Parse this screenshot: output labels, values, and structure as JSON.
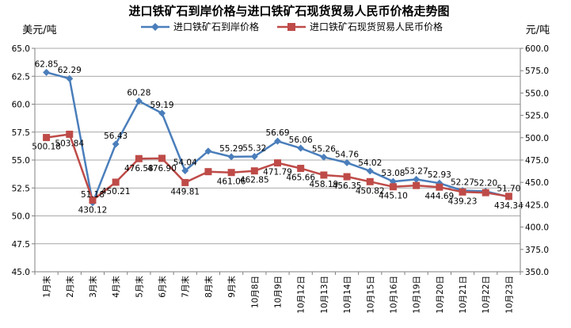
{
  "chart_data": {
    "type": "line",
    "title": "进口铁矿石到岸价格与进口铁矿石现货贸易人民币价格走势图",
    "y_left_unit": "美元/吨",
    "y_right_unit": "元/吨",
    "y_left_range": [
      45.0,
      65.0
    ],
    "y_left_ticks": [
      "45.0",
      "47.5",
      "50.0",
      "52.5",
      "55.0",
      "57.5",
      "60.0",
      "62.5",
      "65.0"
    ],
    "y_right_range": [
      350.0,
      600.0
    ],
    "y_right_ticks": [
      "350.0",
      "375.0",
      "400.0",
      "425.0",
      "450.0",
      "475.0",
      "500.0",
      "525.0",
      "550.0",
      "575.0",
      "600.0"
    ],
    "grid": true,
    "legend_position": "top-center",
    "categories": [
      "1月末",
      "2月末",
      "3月末",
      "4月末",
      "5月末",
      "6月末",
      "7月末",
      "8月末",
      "9月末",
      "10月8日",
      "10月9日",
      "10月12日",
      "10月13日",
      "10月14日",
      "10月15日",
      "10月16日",
      "10月19日",
      "10月20日",
      "10月21日",
      "10月22日",
      "10月23日"
    ],
    "series": [
      {
        "name": "进口铁矿石到岸价格",
        "axis": "left",
        "color": "#4A7EBB",
        "marker": "diamond",
        "values": [
          62.85,
          62.29,
          51.18,
          56.43,
          60.28,
          59.19,
          54.04,
          55.8,
          55.29,
          55.32,
          56.69,
          56.06,
          55.26,
          54.76,
          54.02,
          53.08,
          53.27,
          52.93,
          52.27,
          52.2,
          51.7
        ],
        "labels": [
          "62.85",
          "62.29",
          "51.18",
          "56.43",
          "60.28",
          "59.19",
          "54.04",
          "",
          "55.29",
          "55.32",
          "56.69",
          "56.06",
          "55.26",
          "54.76",
          "54.02",
          "53.08",
          "53.27",
          "52.93",
          "52.27",
          "52.20",
          "51.70"
        ]
      },
      {
        "name": "进口铁矿石现货贸易人民币价格",
        "axis": "right",
        "color": "#BE4B48",
        "marker": "square",
        "values": [
          500.18,
          503.84,
          430.12,
          450.21,
          476.58,
          476.9,
          449.81,
          462.0,
          461.06,
          462.85,
          471.79,
          465.66,
          458.19,
          456.35,
          450.82,
          445.1,
          446.5,
          444.69,
          439.23,
          438.5,
          434.34
        ],
        "labels": [
          "500.18",
          "503.84",
          "430.12",
          "450.21",
          "476.58",
          "476.90",
          "449.81",
          "",
          "461.06",
          "462.85",
          "471.79",
          "465.66",
          "458.19",
          "456.35",
          "450.82",
          "445.10",
          "",
          "444.69",
          "439.23",
          "",
          "434.34"
        ]
      }
    ]
  }
}
